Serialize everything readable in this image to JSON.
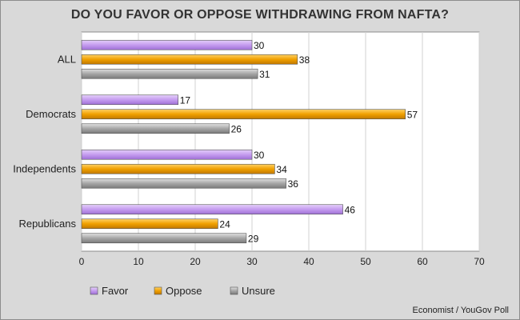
{
  "chart_data": {
    "type": "bar",
    "orientation": "horizontal",
    "title": "DO YOU FAVOR OR OPPOSE WITHDRAWING FROM NAFTA?",
    "categories": [
      "ALL",
      "Democrats",
      "Independents",
      "Republicans"
    ],
    "series": [
      {
        "name": "Favor",
        "values": [
          30,
          17,
          30,
          46
        ],
        "color": "#c9a3f0"
      },
      {
        "name": "Oppose",
        "values": [
          38,
          57,
          34,
          24
        ],
        "color": "#f0a500"
      },
      {
        "name": "Unsure",
        "values": [
          31,
          26,
          36,
          29
        ],
        "color": "#a6a6a6"
      }
    ],
    "xlim": [
      0,
      70
    ],
    "x_ticks": [
      0,
      10,
      20,
      30,
      40,
      50,
      60,
      70
    ],
    "grid": true,
    "legend_position": "bottom-left",
    "data_labels": true
  },
  "source": "Economist / YouGov Poll"
}
